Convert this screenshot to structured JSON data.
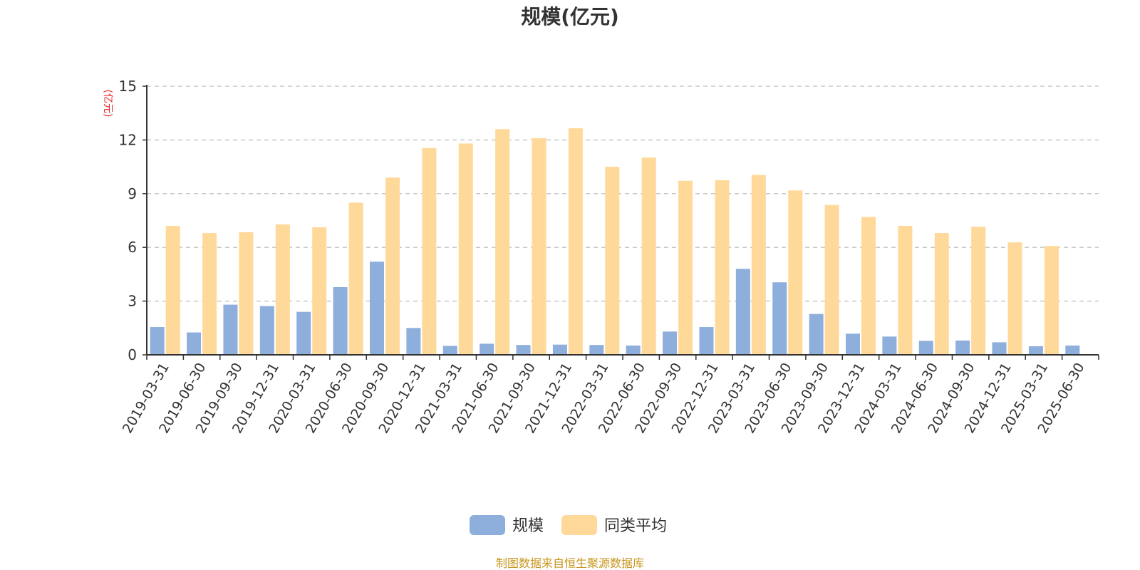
{
  "chart_data": {
    "type": "bar",
    "title": "规模(亿元)",
    "y_unit_label": "(亿元)",
    "xlabel": "",
    "ylabel": "",
    "ylim": [
      0,
      15
    ],
    "yticks": [
      "0",
      "3",
      "6",
      "9",
      "12",
      "15"
    ],
    "grid": true,
    "legend_position": "bottom-center",
    "categories": [
      "2019-03-31",
      "2019-06-30",
      "2019-09-30",
      "2019-12-31",
      "2020-03-31",
      "2020-06-30",
      "2020-09-30",
      "2020-12-31",
      "2021-03-31",
      "2021-06-30",
      "2021-09-30",
      "2021-12-31",
      "2022-03-31",
      "2022-06-30",
      "2022-09-30",
      "2022-12-31",
      "2023-03-31",
      "2023-06-30",
      "2023-09-30",
      "2023-12-31",
      "2024-03-31",
      "2024-06-30",
      "2024-09-30",
      "2024-12-31",
      "2025-03-31",
      "2025-06-30"
    ],
    "series": [
      {
        "name": "规模",
        "color": "#8eaedc",
        "values": [
          1.55,
          1.25,
          2.8,
          2.72,
          2.4,
          3.78,
          5.2,
          1.5,
          0.5,
          0.62,
          0.55,
          0.57,
          0.55,
          0.52,
          1.3,
          1.55,
          4.8,
          4.05,
          2.28,
          1.18,
          1.02,
          0.78,
          0.8,
          0.7,
          0.48,
          0.52
        ]
      },
      {
        "name": "同类平均",
        "color": "#ffd99a",
        "values": [
          7.2,
          6.8,
          6.85,
          7.28,
          7.12,
          8.5,
          9.9,
          11.55,
          11.8,
          12.6,
          12.1,
          12.65,
          10.5,
          11.02,
          9.72,
          9.75,
          10.05,
          9.18,
          8.37,
          7.7,
          7.2,
          6.8,
          7.15,
          6.28,
          6.08,
          null
        ]
      }
    ]
  },
  "source_note": "制图数据来自恒生聚源数据库"
}
